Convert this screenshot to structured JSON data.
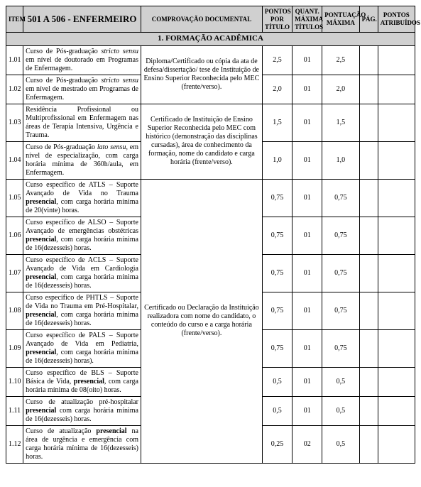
{
  "header": {
    "item": "ITEM",
    "titulo": "501 A 506 - ENFERMEIRO",
    "doc": "COMPROVAÇÃO DOCUMENTAL",
    "ppt": "PONTOS POR TÍTULO",
    "qmt": "QUANT. MÁXIMA TÍTULOS",
    "pm": "PONTUAÇÃO MÁXIMA",
    "pag": "PÁG.",
    "pa": "PONTOS ATRIBUÍDOS"
  },
  "section": "1.   FORMAÇÃO ACADÊMICA",
  "docgroups": {
    "d1": "Diploma/Certificado ou cópia da ata de defesa/dissertação/ tese de Instituição de Ensino Superior Reconhecida pelo MEC (frente/verso).",
    "d2": "Certificado de Instituição de Ensino Superior Reconhecida pelo MEC com histórico (demonstração das disciplinas cursadas), área de conhecimento da formação, nome do candidato e carga horária (frente/verso).",
    "d3": "Certificado ou Declaração da Instituição realizadora com nome do candidato, o conteúdo do curso e a carga horária (frente/verso)."
  },
  "rows": [
    {
      "n": "1.01",
      "desc": "Curso de Pós-graduação <i>stricto sensu</i> em nível de doutorado em Programas de Enfermagem.",
      "ppt": "2,5",
      "qmt": "01",
      "pm": "2,5"
    },
    {
      "n": "1.02",
      "desc": "Curso de Pós-graduação <i>stricto sensu</i> em nível de mestrado em Programas de Enfermagem.",
      "ppt": "2,0",
      "qmt": "01",
      "pm": "2,0"
    },
    {
      "n": "1.03",
      "desc": "Residência Profissional ou Multiprofissional em Enfermagem nas áreas de Terapia Intensiva, Urgência e Trauma.",
      "ppt": "1,5",
      "qmt": "01",
      "pm": "1,5"
    },
    {
      "n": "1.04",
      "desc": "Curso de Pós-graduação <i>lato sensu</i>, em nível de especialização, com carga horária mínima de 360h/aula, em Enfermagem.",
      "ppt": "1,0",
      "qmt": "01",
      "pm": "1,0"
    },
    {
      "n": "1.05",
      "desc": "Curso específico de ATLS – Suporte Avançado de Vida no Trauma <b>presencial</b>, com carga horária mínima de 20(vinte) horas.",
      "ppt": "0,75",
      "qmt": "01",
      "pm": "0,75"
    },
    {
      "n": "1.06",
      "desc": "Curso específico de ALSO – Suporte Avançado de emergências obstétricas <b>presencial</b>, com carga horária mínima de 16(dezesseis) horas.",
      "ppt": "0,75",
      "qmt": "01",
      "pm": "0,75"
    },
    {
      "n": "1.07",
      "desc": "Curso específico de ACLS – Suporte Avançado de Vida em Cardiologia <b>presencial</b>, com carga horária mínima de 16(dezesseis) horas.",
      "ppt": "0,75",
      "qmt": "01",
      "pm": "0,75"
    },
    {
      "n": "1.08",
      "desc": "Curso específico de PHTLS – Suporte de Vida no Trauma em Pré-Hospitalar, <b>presencial</b>, com carga horária mínima de 16(dezesseis) horas.",
      "ppt": "0,75",
      "qmt": "01",
      "pm": "0,75"
    },
    {
      "n": "1.09",
      "desc": "Curso específico de PALS – Suporte Avançado de Vida em Pediatria, <b>presencial</b>, com carga horária mínima de 16(dezesseis) horas).",
      "ppt": "0,75",
      "qmt": "01",
      "pm": "0,75"
    },
    {
      "n": "1.10",
      "desc": "Curso específico de BLS – Suporte Básica de Vida, <b>presencial</b>, com carga horária mínima de 08(oito) horas.",
      "ppt": "0,5",
      "qmt": "01",
      "pm": "0,5"
    },
    {
      "n": "1.11",
      "desc": "Curso de atualização pré-hospitalar <b>presencial</b> com carga horária mínima de 16(dezesseis) horas.",
      "ppt": "0,5",
      "qmt": "01",
      "pm": "0,5"
    },
    {
      "n": "1.12",
      "desc": "Curso de atualização <b>presencial</b> na área de urgência e emergência com carga horária mínima de 16(dezesseis) horas.",
      "ppt": "0,25",
      "qmt": "02",
      "pm": "0,5"
    }
  ]
}
